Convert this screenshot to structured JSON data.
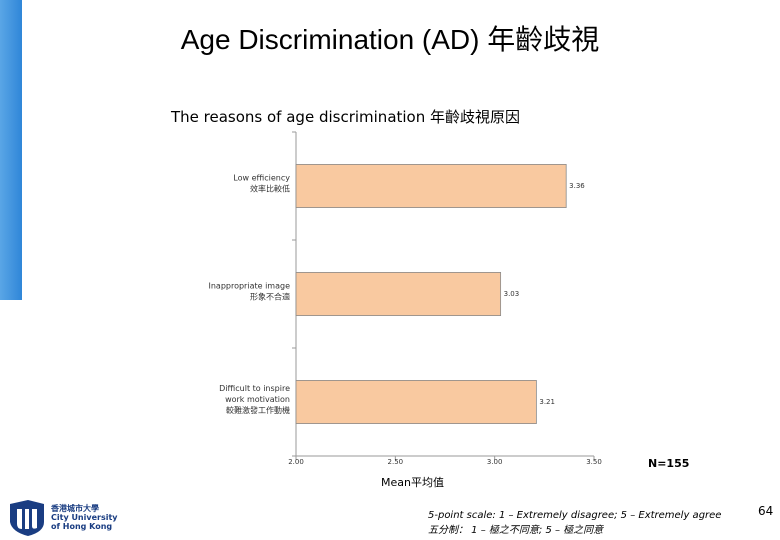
{
  "slide": {
    "title": "Age Discrimination (AD) 年齡歧視",
    "page_number": "64"
  },
  "chart_data": {
    "type": "bar",
    "orientation": "horizontal",
    "title": "The reasons of age discrimination 年齡歧視原因",
    "categories": [
      [
        "Low efficiency",
        "效率比較低"
      ],
      [
        "Inappropriate image",
        "形象不合適"
      ],
      [
        "Difficult to inspire",
        "work motivation",
        "較難激發工作動機"
      ]
    ],
    "values": [
      3.36,
      3.03,
      3.21
    ],
    "data_labels": [
      "3.36",
      "3.03",
      "3.21"
    ],
    "xlim": [
      2.0,
      3.5
    ],
    "xticks": [
      "2.00",
      "2.50",
      "3.00",
      "3.50"
    ],
    "xlabel": "Mean平均值",
    "bar_color": "#f9c9a0",
    "bar_edge_color": "#8a8a8a",
    "grid": false
  },
  "annotations": {
    "n": "N=155",
    "scale_note_en": "5-point scale: 1 – Extremely disagree; 5 – Extremely agree",
    "scale_note_zh": "五分制： 1 – 極之不同意; 5 – 極之同意"
  },
  "logo": {
    "lines": [
      "香港城市大學",
      "City University",
      "of Hong Kong"
    ],
    "color": "#1a3d82"
  },
  "colors": {
    "accent_bar": "#3a8ee0"
  }
}
